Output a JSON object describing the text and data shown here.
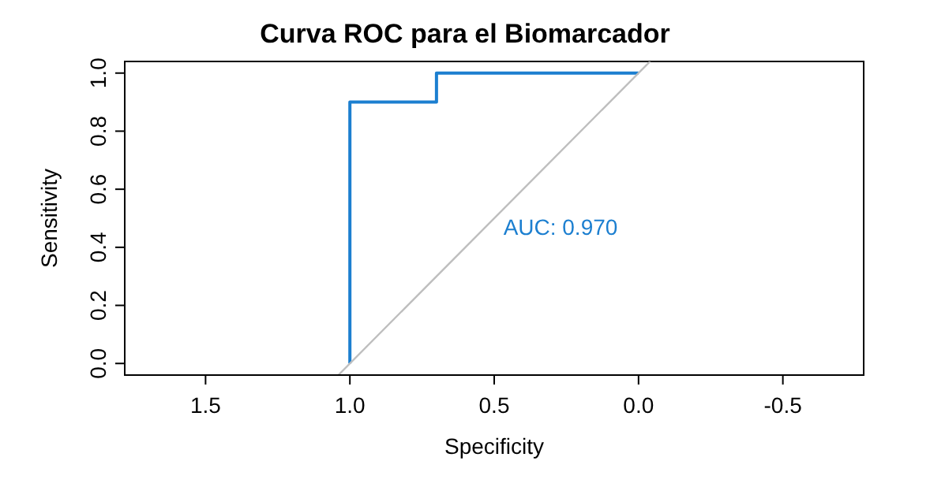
{
  "chart_data": {
    "type": "line",
    "title": "Curva ROC para el Biomarcador",
    "xlabel": "Specificity",
    "ylabel": "Sensitivity",
    "xlim": [
      1.78,
      -0.78
    ],
    "ylim": [
      -0.04,
      1.04
    ],
    "xticks": [
      {
        "value": 1.5,
        "label": "1.5"
      },
      {
        "value": 1.0,
        "label": "1.0"
      },
      {
        "value": 0.5,
        "label": "0.5"
      },
      {
        "value": 0.0,
        "label": "0.0"
      },
      {
        "value": -0.5,
        "label": "-0.5"
      }
    ],
    "yticks": [
      {
        "value": 0,
        "label": "0.0"
      },
      {
        "value": 0.2,
        "label": "0.2"
      },
      {
        "value": 0.4,
        "label": "0.4"
      },
      {
        "value": 0.6,
        "label": "0.6"
      },
      {
        "value": 0.8,
        "label": "0.8"
      },
      {
        "value": 1.0,
        "label": "1.0"
      }
    ],
    "series": [
      {
        "color": "#1c7fd0",
        "x": [
          1,
          1,
          0.7,
          0.7,
          0
        ],
        "values": [
          0,
          0.9,
          0.9,
          1,
          1
        ]
      },
      {
        "color": "#bebebe",
        "x": [
          1.04,
          -0.04
        ],
        "values": [
          -0.04,
          1.04
        ]
      }
    ],
    "annotations": [
      "AUC: 0.970"
    ],
    "marker": "none",
    "line_style": "solid"
  }
}
